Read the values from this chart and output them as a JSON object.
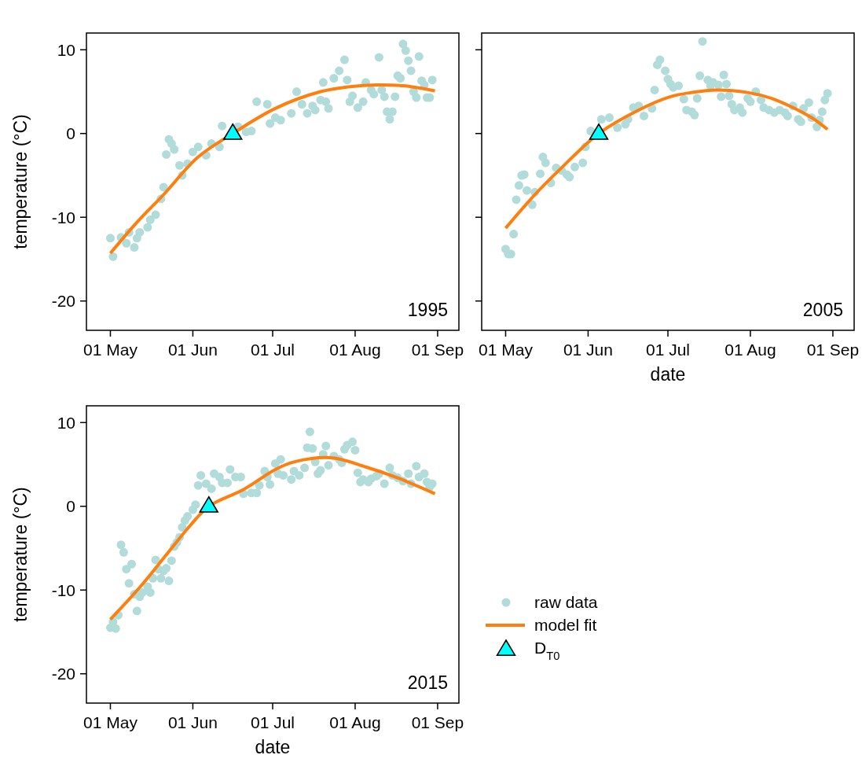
{
  "chart_data": [
    {
      "type": "scatter",
      "title": "1995",
      "ylabel": "temperature (°C)",
      "xlim": [
        "--04-22",
        "--09-09"
      ],
      "ylim": [
        -23.5,
        12
      ],
      "xticks": [
        {
          "value": "--05-01",
          "label": "01 May"
        },
        {
          "value": "--06-01",
          "label": "01 Jun"
        },
        {
          "value": "--07-01",
          "label": "01 Jul"
        },
        {
          "value": "--08-01",
          "label": "01 Aug"
        },
        {
          "value": "--09-01",
          "label": "01 Sep"
        }
      ],
      "yticks": [
        -20,
        -10,
        0,
        10
      ],
      "grid": false,
      "series": [
        {
          "type": "scatter",
          "marker": "circle",
          "color": "#b2dcd9",
          "x": [
            "--05-01",
            "--05-02",
            "--05-05",
            "--05-07",
            "--05-08",
            "--05-10",
            "--05-11",
            "--05-12",
            "--05-15",
            "--05-16",
            "--05-18",
            "--05-20",
            "--05-21",
            "--05-22",
            "--05-23",
            "--05-24",
            "--05-25",
            "--05-27",
            "--05-28",
            "--05-30",
            "--06-01",
            "--06-03",
            "--06-06",
            "--06-08",
            "--06-11",
            "--06-12",
            "--06-18",
            "--06-21",
            "--06-23",
            "--06-25",
            "--06-29",
            "--06-30",
            "--07-02",
            "--07-04",
            "--07-08",
            "--07-10",
            "--07-12",
            "--07-14",
            "--07-16",
            "--07-17",
            "--07-19",
            "--07-20",
            "--07-21",
            "--07-22",
            "--07-24",
            "--07-26",
            "--07-28",
            "--07-29",
            "--07-30",
            "--07-31",
            "--08-02",
            "--08-04",
            "--08-05",
            "--08-07",
            "--08-08",
            "--08-10",
            "--08-11",
            "--08-12",
            "--08-13",
            "--08-14",
            "--08-15",
            "--08-16",
            "--08-17",
            "--08-18",
            "--08-19",
            "--08-20",
            "--08-21",
            "--08-22",
            "--08-23",
            "--08-24",
            "--08-25",
            "--08-26",
            "--08-27",
            "--08-28",
            "--08-29",
            "--08-30"
          ],
          "values": [
            -12.5,
            -14.7,
            -12.4,
            -13.1,
            -11.8,
            -13.6,
            -12.5,
            -11.8,
            -11.2,
            -10.3,
            -9.7,
            -7.8,
            -6.4,
            -2.5,
            -0.7,
            -1.2,
            -1.9,
            -3.8,
            -5.0,
            -3.6,
            -2.2,
            -1.6,
            -2.6,
            -1.2,
            -1.6,
            0.9,
            0.8,
            0.2,
            0.3,
            3.8,
            3.5,
            1.2,
            1.9,
            1.6,
            2.4,
            5.0,
            3.5,
            2.4,
            3.3,
            2.8,
            4.0,
            6.1,
            3.8,
            3.0,
            6.6,
            7.5,
            8.8,
            6.4,
            3.8,
            4.5,
            3.1,
            3.8,
            6.1,
            5.2,
            4.7,
            9.1,
            5.2,
            4.4,
            2.6,
            1.7,
            2.6,
            4.4,
            6.9,
            6.6,
            10.7,
            9.9,
            8.7,
            7.5,
            5.0,
            4.3,
            9.2,
            6.3,
            5.8,
            4.3,
            4.3,
            6.4
          ]
        },
        {
          "type": "line",
          "marker": "none",
          "line_style": "solid",
          "color": "#ff7f0e",
          "x": [
            "--05-01",
            "--05-11",
            "--05-21",
            "--06-03",
            "--06-16",
            "--07-02",
            "--07-19",
            "--07-30",
            "--08-09",
            "--08-19",
            "--08-31"
          ],
          "values": [
            -14.3,
            -10.6,
            -7.3,
            -2.8,
            0,
            3.0,
            5.0,
            5.6,
            5.8,
            5.7,
            5.1
          ]
        },
        {
          "type": "scatter",
          "marker": "triangle",
          "color": "#00ffff",
          "x": [
            "--06-16"
          ],
          "values": [
            0
          ]
        }
      ]
    },
    {
      "type": "scatter",
      "title": "2005",
      "xlabel": "date",
      "tick_labels": "x",
      "xlim": [
        "--04-22",
        "--09-09"
      ],
      "ylim": [
        -23.5,
        12
      ],
      "xticks": [
        {
          "value": "--05-01",
          "label": "01 May"
        },
        {
          "value": "--06-01",
          "label": "01 Jun"
        },
        {
          "value": "--07-01",
          "label": "01 Jul"
        },
        {
          "value": "--08-01",
          "label": "01 Aug"
        },
        {
          "value": "--09-01",
          "label": "01 Sep"
        }
      ],
      "yticks": [
        -20,
        -10,
        0,
        10
      ],
      "grid": false,
      "series": [
        {
          "type": "scatter",
          "marker": "circle",
          "color": "#b2dcd9",
          "x": [
            "--05-01",
            "--05-02",
            "--05-03",
            "--05-04",
            "--05-05",
            "--05-06",
            "--05-07",
            "--05-08",
            "--05-09",
            "--05-11",
            "--05-12",
            "--05-14",
            "--05-15",
            "--05-16",
            "--05-18",
            "--05-20",
            "--05-22",
            "--05-24",
            "--05-25",
            "--05-27",
            "--05-30",
            "--05-31",
            "--06-02",
            "--06-06",
            "--06-09",
            "--06-12",
            "--06-15",
            "--06-16",
            "--06-18",
            "--06-20",
            "--06-22",
            "--06-25",
            "--06-26",
            "--06-27",
            "--06-28",
            "--06-30",
            "--07-01",
            "--07-02",
            "--07-03",
            "--07-05",
            "--07-07",
            "--07-08",
            "--07-10",
            "--07-11",
            "--07-12",
            "--07-13",
            "--07-14",
            "--07-16",
            "--07-17",
            "--07-18",
            "--07-20",
            "--07-21",
            "--07-22",
            "--07-23",
            "--07-24",
            "--07-25",
            "--07-26",
            "--07-28",
            "--07-29",
            "--07-31",
            "--08-01",
            "--08-03",
            "--08-05",
            "--08-06",
            "--08-08",
            "--08-10",
            "--08-12",
            "--08-14",
            "--08-15",
            "--08-17",
            "--08-19",
            "--08-20",
            "--08-21",
            "--08-23",
            "--08-24",
            "--08-26",
            "--08-27",
            "--08-28",
            "--08-29",
            "--08-30"
          ],
          "values": [
            -13.8,
            -14.4,
            -14.4,
            -12.0,
            -7.9,
            -6.2,
            -5.0,
            -4.9,
            -6.8,
            -8.5,
            -7.0,
            -4.8,
            -2.8,
            -3.5,
            -5.9,
            -4.1,
            -4.4,
            -4.9,
            -5.2,
            -4.0,
            -3.5,
            -1.6,
            0.3,
            1.7,
            1.9,
            0.7,
            1.1,
            1.7,
            3.1,
            3.3,
            2.1,
            3.0,
            5.2,
            8.2,
            8.8,
            7.5,
            6.5,
            5.9,
            5.5,
            5.7,
            4.1,
            2.8,
            2.6,
            2.2,
            4.2,
            6.9,
            11.0,
            6.4,
            5.7,
            6.1,
            5.8,
            4.4,
            7.0,
            5.9,
            4.5,
            3.5,
            2.8,
            3.1,
            2.5,
            4.2,
            3.8,
            5.0,
            4.0,
            3.1,
            2.8,
            2.5,
            2.8,
            2.5,
            2.1,
            3.3,
            1.7,
            1.4,
            3.0,
            3.7,
            1.9,
            0.8,
            1.6,
            2.6,
            4.0,
            4.8
          ]
        },
        {
          "type": "line",
          "marker": "none",
          "line_style": "solid",
          "color": "#ff7f0e",
          "x": [
            "--05-01",
            "--05-12",
            "--05-22",
            "--06-05",
            "--06-20",
            "--07-02",
            "--07-10",
            "--07-19",
            "--07-31",
            "--08-09",
            "--08-17",
            "--08-24",
            "--08-30"
          ],
          "values": [
            -11.3,
            -7.3,
            -4.1,
            0,
            2.8,
            4.4,
            4.9,
            5.2,
            4.9,
            4.2,
            3.1,
            1.9,
            0.5
          ]
        },
        {
          "type": "scatter",
          "marker": "triangle",
          "color": "#00ffff",
          "x": [
            "--06-05"
          ],
          "values": [
            0
          ]
        }
      ]
    },
    {
      "type": "scatter",
      "title": "2015",
      "xlabel": "date",
      "ylabel": "temperature (°C)",
      "legend": "right",
      "xlim": [
        "--04-22",
        "--09-09"
      ],
      "ylim": [
        -23.5,
        12
      ],
      "xticks": [
        {
          "value": "--05-01",
          "label": "01 May"
        },
        {
          "value": "--06-01",
          "label": "01 Jun"
        },
        {
          "value": "--07-01",
          "label": "01 Jul"
        },
        {
          "value": "--08-01",
          "label": "01 Aug"
        },
        {
          "value": "--09-01",
          "label": "01 Sep"
        }
      ],
      "yticks": [
        -20,
        -10,
        0,
        10
      ],
      "grid": false,
      "series": [
        {
          "name": "raw data",
          "type": "scatter",
          "marker": "circle",
          "color": "#b2dcd9",
          "x": [
            "--05-01",
            "--05-02",
            "--05-03",
            "--05-04",
            "--05-05",
            "--05-06",
            "--05-07",
            "--05-08",
            "--05-09",
            "--05-10",
            "--05-11",
            "--05-12",
            "--05-13",
            "--05-15",
            "--05-16",
            "--05-17",
            "--05-18",
            "--05-19",
            "--05-20",
            "--05-21",
            "--05-22",
            "--05-23",
            "--05-24",
            "--05-25",
            "--05-26",
            "--05-27",
            "--05-28",
            "--05-29",
            "--05-30",
            "--06-01",
            "--06-02",
            "--06-03",
            "--06-04",
            "--06-06",
            "--06-08",
            "--06-09",
            "--06-11",
            "--06-12",
            "--06-14",
            "--06-15",
            "--06-17",
            "--06-19",
            "--06-20",
            "--06-23",
            "--06-25",
            "--06-26",
            "--06-28",
            "--06-29",
            "--06-30",
            "--07-02",
            "--07-03",
            "--07-04",
            "--07-05",
            "--07-08",
            "--07-09",
            "--07-11",
            "--07-13",
            "--07-14",
            "--07-15",
            "--07-16",
            "--07-17",
            "--07-18",
            "--07-19",
            "--07-20",
            "--07-21",
            "--07-22",
            "--07-24",
            "--07-26",
            "--07-27",
            "--07-28",
            "--07-29",
            "--07-31",
            "--08-01",
            "--08-02",
            "--08-03",
            "--08-04",
            "--08-06",
            "--08-07",
            "--08-09",
            "--08-10",
            "--08-12",
            "--08-14",
            "--08-15",
            "--08-17",
            "--08-19",
            "--08-21",
            "--08-22",
            "--08-24",
            "--08-25",
            "--08-27",
            "--08-28",
            "--08-29",
            "--08-30"
          ],
          "values": [
            -14.5,
            -13.8,
            -14.6,
            -13.0,
            -4.6,
            -5.5,
            -7.5,
            -9.2,
            -6.9,
            -10.5,
            -12.5,
            -10.8,
            -10.3,
            -9.6,
            -10.3,
            -8.6,
            -6.4,
            -7.5,
            -8.6,
            -7.7,
            -7.4,
            -8.9,
            -6.5,
            -4.8,
            -4.3,
            -3.7,
            -2.5,
            -1.7,
            -1.2,
            -0.4,
            0.2,
            2.5,
            3.7,
            2.7,
            2.1,
            3.9,
            3.5,
            2.8,
            2.8,
            4.4,
            3.5,
            3.5,
            1.5,
            1.6,
            1.6,
            2.5,
            4.2,
            3.5,
            2.6,
            5.1,
            3.9,
            5.6,
            3.7,
            3.2,
            4.2,
            3.7,
            4.6,
            7.0,
            8.9,
            6.9,
            5.3,
            3.9,
            4.3,
            6.2,
            7.2,
            4.9,
            6.0,
            5.6,
            5.2,
            6.8,
            7.3,
            7.7,
            6.7,
            4.0,
            2.9,
            3.2,
            2.9,
            3.3,
            3.6,
            3.9,
            2.7,
            4.6,
            3.7,
            3.4,
            3.0,
            3.9,
            2.7,
            4.8,
            3.5,
            3.9,
            2.9,
            2.3,
            2.7
          ]
        },
        {
          "name": "model fit",
          "type": "line",
          "marker": "none",
          "line_style": "solid",
          "color": "#ff7f0e",
          "x": [
            "--05-01",
            "--05-12",
            "--05-22",
            "--05-31",
            "--06-07",
            "--06-20",
            "--07-02",
            "--07-09",
            "--07-23",
            "--08-05",
            "--08-17",
            "--08-31"
          ],
          "values": [
            -13.5,
            -9.7,
            -5.8,
            -2.3,
            0,
            2.0,
            4.4,
            5.3,
            5.8,
            4.7,
            3.4,
            1.5
          ]
        },
        {
          "name": "D$_{T0}$",
          "type": "scatter",
          "marker": "triangle",
          "color": "#00ffff",
          "x": [
            "--06-07"
          ],
          "values": [
            0
          ]
        }
      ]
    }
  ]
}
